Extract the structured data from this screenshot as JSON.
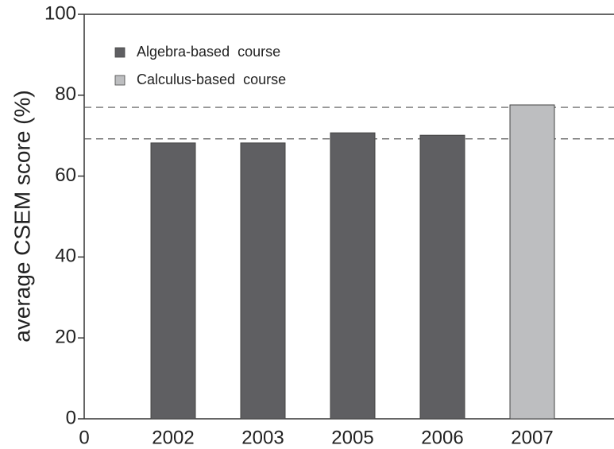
{
  "chart_data": {
    "type": "bar",
    "y_label": "average  CSEM  score  (%)",
    "x_origin_label": "0",
    "categories": [
      "2002",
      "2003",
      "2005",
      "2006",
      "2007"
    ],
    "series": [
      {
        "name": "Algebra-based  course",
        "color": "#5f5f62",
        "values": [
          68.2,
          68.2,
          70.7,
          70.1,
          null
        ]
      },
      {
        "name": "Calculus-based  course",
        "color": "#bdbec0",
        "values": [
          null,
          null,
          null,
          null,
          77.6
        ]
      }
    ],
    "reference_lines": [
      77.0,
      69.2
    ],
    "ylim": [
      0,
      100
    ],
    "yticks": [
      0,
      20,
      40,
      60,
      80,
      100
    ],
    "legend": "upper left"
  }
}
